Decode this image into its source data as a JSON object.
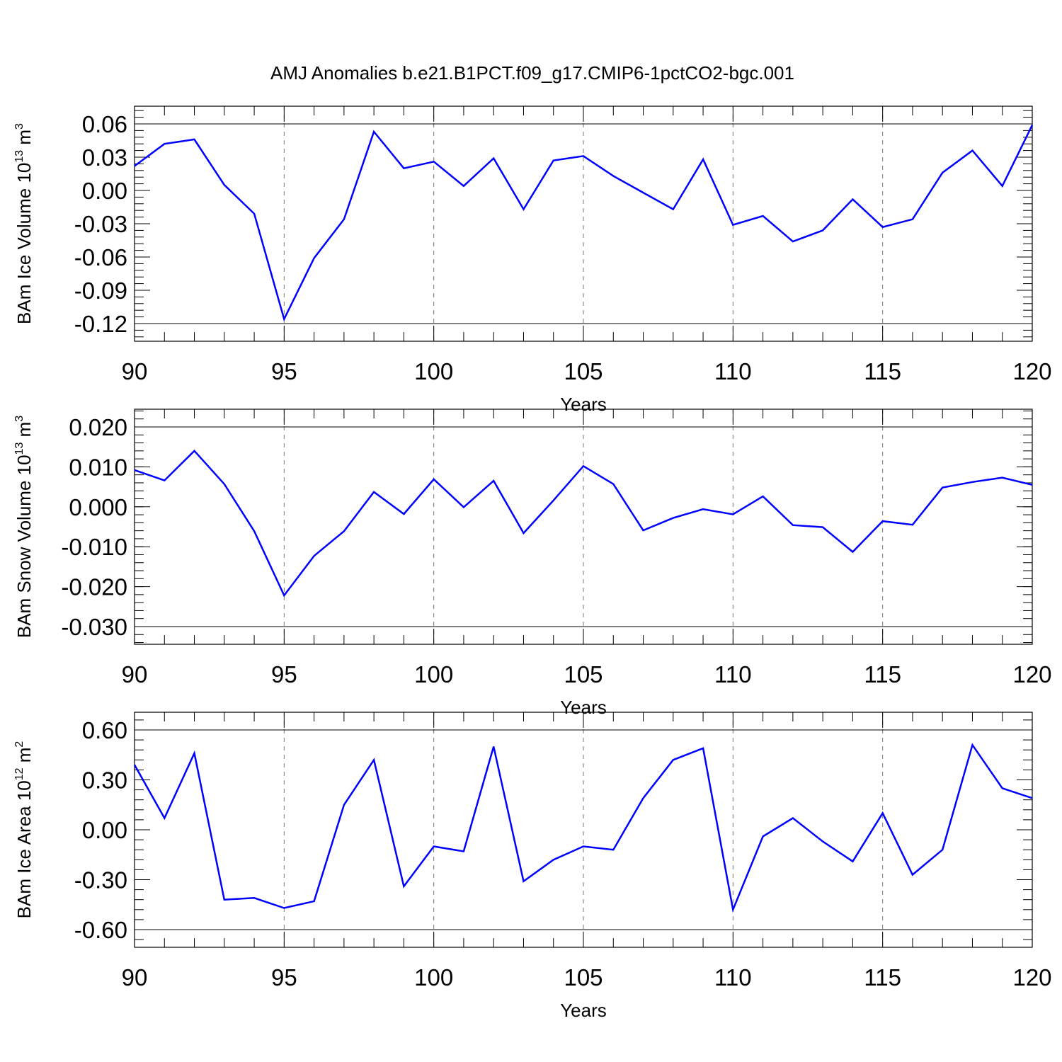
{
  "title": "AMJ Anomalies b.e21.B1PCT.f09_g17.CMIP6-1pctCO2-bgc.001",
  "series_color": "#0000ff",
  "chart_data": [
    {
      "type": "line",
      "ylabel_main": "BAm Ice Volume 10",
      "ylabel_exp": "13",
      "ylabel_unit": " m",
      "ylabel_unit_exp": "3",
      "xlabel": "Years",
      "xlim": [
        90,
        120
      ],
      "ylim": [
        -0.12,
        0.06
      ],
      "x_ticks": [
        "90",
        "95",
        "100",
        "105",
        "110",
        "115",
        "120"
      ],
      "y_ticks": [
        "0.06",
        "0.03",
        "0.00",
        "-0.03",
        "-0.06",
        "-0.09",
        "-0.12"
      ],
      "grid_x": true,
      "x": [
        90,
        91,
        92,
        93,
        94,
        95,
        96,
        97,
        98,
        99,
        100,
        101,
        102,
        103,
        104,
        105,
        106,
        107,
        108,
        109,
        110,
        111,
        112,
        113,
        114,
        115,
        116,
        117,
        118,
        119,
        120
      ],
      "values": [
        0.022,
        0.042,
        0.046,
        0.005,
        -0.021,
        -0.116,
        -0.061,
        -0.026,
        0.053,
        0.02,
        0.026,
        0.004,
        0.029,
        -0.017,
        0.027,
        0.031,
        0.013,
        -0.002,
        -0.017,
        0.028,
        -0.031,
        -0.023,
        -0.046,
        -0.036,
        -0.008,
        -0.033,
        -0.026,
        0.016,
        0.036,
        0.004,
        0.059
      ]
    },
    {
      "type": "line",
      "ylabel_main": "BAm Snow Volume 10",
      "ylabel_exp": "13",
      "ylabel_unit": " m",
      "ylabel_unit_exp": "3",
      "xlabel": "Years",
      "xlim": [
        90,
        120
      ],
      "ylim": [
        -0.03,
        0.02
      ],
      "x_ticks": [
        "90",
        "95",
        "100",
        "105",
        "110",
        "115",
        "120"
      ],
      "y_ticks": [
        "0.020",
        "0.010",
        "0.000",
        "-0.010",
        "-0.020",
        "-0.030"
      ],
      "grid_x": true,
      "x": [
        90,
        91,
        92,
        93,
        94,
        95,
        96,
        97,
        98,
        99,
        100,
        101,
        102,
        103,
        104,
        105,
        106,
        107,
        108,
        109,
        110,
        111,
        112,
        113,
        114,
        115,
        116,
        117,
        118,
        119,
        120
      ],
      "values": [
        0.0092,
        0.0066,
        0.014,
        0.0057,
        -0.0061,
        -0.0222,
        -0.0123,
        -0.0061,
        0.0037,
        -0.0018,
        0.0069,
        -0.0001,
        0.0065,
        -0.0066,
        0.0016,
        0.0102,
        0.0057,
        -0.0059,
        -0.0028,
        -0.0006,
        -0.0019,
        0.0026,
        -0.0046,
        -0.0051,
        -0.0113,
        -0.0036,
        -0.0045,
        0.0048,
        0.0062,
        0.0073,
        0.0055
      ]
    },
    {
      "type": "line",
      "ylabel_main": "BAm Ice Area 10",
      "ylabel_exp": "12",
      "ylabel_unit": " m",
      "ylabel_unit_exp": "2",
      "xlabel": "Years",
      "xlim": [
        90,
        120
      ],
      "ylim": [
        -0.6,
        0.6
      ],
      "x_ticks": [
        "90",
        "95",
        "100",
        "105",
        "110",
        "115",
        "120"
      ],
      "y_ticks": [
        "0.60",
        "0.30",
        "0.00",
        "-0.30",
        "-0.60"
      ],
      "grid_x": true,
      "x": [
        90,
        91,
        92,
        93,
        94,
        95,
        96,
        97,
        98,
        99,
        100,
        101,
        102,
        103,
        104,
        105,
        106,
        107,
        108,
        109,
        110,
        111,
        112,
        113,
        114,
        115,
        116,
        117,
        118,
        119,
        120
      ],
      "values": [
        0.39,
        0.07,
        0.46,
        -0.42,
        -0.41,
        -0.47,
        -0.43,
        0.15,
        0.42,
        -0.34,
        -0.1,
        -0.13,
        0.5,
        -0.31,
        -0.18,
        -0.1,
        -0.12,
        0.19,
        0.42,
        0.49,
        -0.48,
        -0.04,
        0.07,
        -0.07,
        -0.19,
        0.1,
        -0.27,
        -0.12,
        0.51,
        0.25,
        0.19
      ]
    }
  ]
}
